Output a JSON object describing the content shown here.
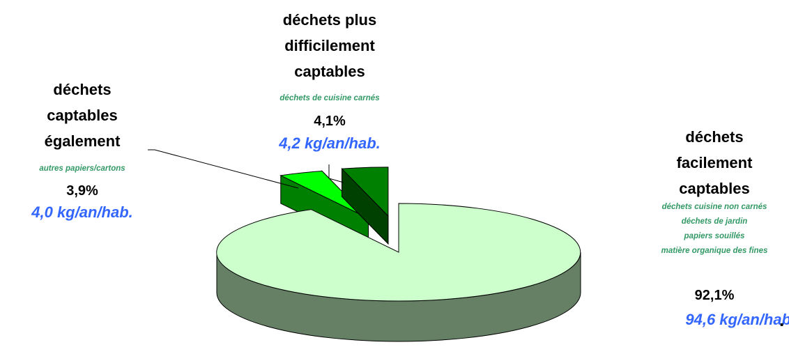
{
  "chart_data": {
    "type": "pie",
    "categories": [
      "déchets\nfacilement\ncaptables",
      "déchets\ncaptables\négalement",
      "déchets plus\ndifficilement\ncaptables"
    ],
    "details": [
      "déchets cuisine non carnés\ndéchets de jardin\npapiers souillés\nmatière organique des fines",
      "autres papiers/cartons",
      "déchets de cuisine carnés"
    ],
    "values": [
      92.1,
      3.9,
      4.1
    ],
    "value_labels": [
      "92,1%",
      "3,9%",
      "4,1%"
    ],
    "amounts": [
      "94,6 kg/an/hab",
      "4,0 kg/an/hab.",
      "4,2 kg/an/hab."
    ],
    "trailing_mark": ".",
    "colors": [
      "#ccffcc",
      "#00ff00",
      "#008000"
    ],
    "side_colors": [
      "#668066",
      "#008000",
      "#004000"
    ]
  }
}
